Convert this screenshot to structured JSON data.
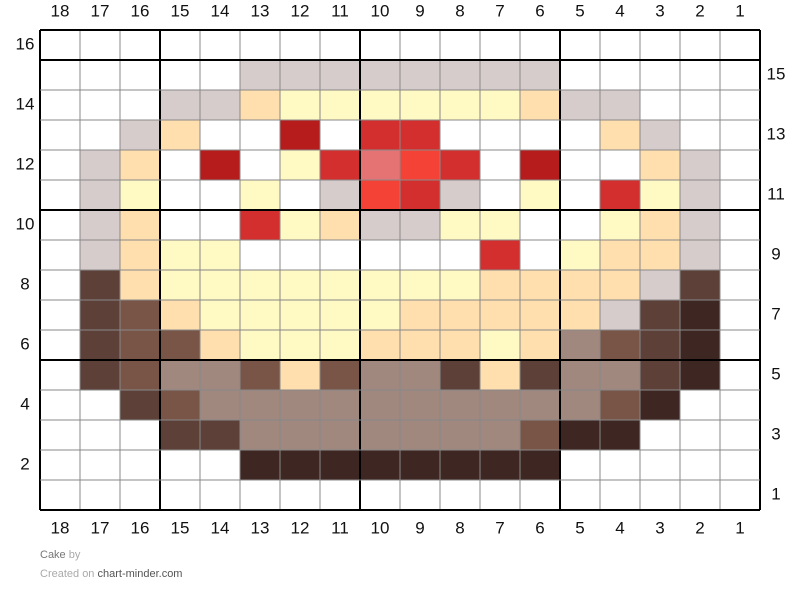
{
  "columns": [
    18,
    17,
    16,
    15,
    14,
    13,
    12,
    11,
    10,
    9,
    8,
    7,
    6,
    5,
    4,
    3,
    2,
    1
  ],
  "rows": [
    16,
    15,
    14,
    13,
    12,
    11,
    10,
    9,
    8,
    7,
    6,
    5,
    4,
    3,
    2,
    1
  ],
  "palette": {
    "W": "#ffffff",
    "G": "#d7cccc",
    "Y": "#fff9c4",
    "P": "#ffdfae",
    "R": "#b71c1c",
    "r": "#d32f2f",
    "o": "#f44336",
    "k": "#e57373",
    "B": "#5d4037",
    "b": "#795548",
    "g": "#a1887f",
    "D": "#3e2723"
  },
  "grid": [
    "WWWWWWWWWWWWWWWWWW",
    "WWWWWGGGGGGGGWWWWW",
    "WWWGGPYYYYYYPGGWWW",
    "WWGPWWRWrrWWWWPGWW",
    "WGPWRWYrkorWRWWPGW",
    "WGYWWYWGorGWYWrYGW",
    "WGPWWrYPGGYYWWYPGW",
    "WGPYYWWWWWWrWYPPGW",
    "WBPYYYYYYYYPPPPGBW",
    "WBbPYYYYYPPPPPGBDW",
    "WBbbPYYYPPPYPgbBDW",
    "WBbggbPbggBPBggBDW",
    "WWBbggggggggggbDWW",
    "WWWBBgggggggbDDWWW",
    "WWWWWDDDDDDDDWWWWW",
    "WWWWWWWWWWWWWWWWWW"
  ],
  "footer": {
    "title": "Cake",
    "by": "by",
    "created": "Created on",
    "site": "chart-minder.com"
  }
}
